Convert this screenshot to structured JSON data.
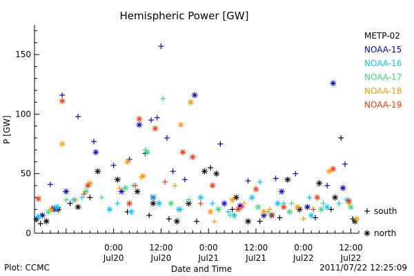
{
  "page": {
    "plot_credit": "Plot: CCMC",
    "timestamp": "2011/07/22 12:25:09"
  },
  "chart_data": {
    "type": "scatter",
    "title": "Hemispheric Power [GW]",
    "xlabel": "Date and Time",
    "ylabel": "P [GW]",
    "xlim": [
      "2011-07-19T04:00",
      "2011-07-22T14:00"
    ],
    "ylim": [
      0,
      175
    ],
    "yticks": [
      0,
      50,
      100,
      150
    ],
    "xticks": [
      {
        "time": "2011-07-20T00:00",
        "line1": "0:00",
        "line2": "Jul20"
      },
      {
        "time": "2011-07-20T12:00",
        "line1": "12:00",
        "line2": "Jul20"
      },
      {
        "time": "2011-07-21T00:00",
        "line1": "0:00",
        "line2": "Jul21"
      },
      {
        "time": "2011-07-21T12:00",
        "line1": "12:00",
        "line2": "Jul21"
      },
      {
        "time": "2011-07-22T00:00",
        "line1": "0:00",
        "line2": "Jul22"
      },
      {
        "time": "2011-07-22T12:00",
        "line1": "12:00",
        "line2": "Jul22"
      }
    ],
    "legend_position": "right",
    "marker_legend": [
      {
        "symbol": "+",
        "label": "south"
      },
      {
        "symbol": "*",
        "label": "north"
      }
    ],
    "series": [
      {
        "name": "METP-02",
        "color": "#000000",
        "south": [
          [
            "2011-07-19T05:30",
            8
          ],
          [
            "2011-07-19T08:30",
            21
          ],
          [
            "2011-07-19T13:00",
            25
          ],
          [
            "2011-07-19T18:00",
            30
          ],
          [
            "2011-07-20T03:30",
            18
          ],
          [
            "2011-07-20T09:00",
            15
          ],
          [
            "2011-07-20T14:00",
            12
          ],
          [
            "2011-07-20T21:00",
            10
          ],
          [
            "2011-07-21T00:30",
            55
          ],
          [
            "2011-07-21T06:00",
            20
          ],
          [
            "2011-07-21T13:00",
            10
          ],
          [
            "2011-07-21T18:00",
            13
          ],
          [
            "2011-07-22T03:00",
            13
          ],
          [
            "2011-07-22T07:00",
            20
          ],
          [
            "2011-07-22T09:30",
            80
          ],
          [
            "2011-07-22T12:30",
            12
          ]
        ],
        "north": [
          [
            "2011-07-19T04:30",
            12
          ],
          [
            "2011-07-19T07:00",
            10
          ],
          [
            "2011-07-19T10:00",
            20
          ],
          [
            "2011-07-19T15:00",
            22
          ],
          [
            "2011-07-19T20:00",
            52
          ],
          [
            "2011-07-20T01:00",
            45
          ],
          [
            "2011-07-20T06:00",
            35
          ],
          [
            "2011-07-20T10:00",
            25
          ],
          [
            "2011-07-20T16:00",
            10
          ],
          [
            "2011-07-20T19:00",
            25
          ],
          [
            "2011-07-20T23:00",
            52
          ],
          [
            "2011-07-21T02:00",
            50
          ],
          [
            "2011-07-21T07:00",
            30
          ],
          [
            "2011-07-21T10:00",
            10
          ],
          [
            "2011-07-21T16:00",
            15
          ],
          [
            "2011-07-21T20:00",
            45
          ],
          [
            "2011-07-21T23:00",
            20
          ],
          [
            "2011-07-22T04:00",
            42
          ],
          [
            "2011-07-22T08:00",
            30
          ],
          [
            "2011-07-22T13:00",
            10
          ]
        ]
      },
      {
        "name": "NOAA-15",
        "color": "#0000cc",
        "south": [
          [
            "2011-07-19T08:00",
            41
          ],
          [
            "2011-07-19T11:00",
            116
          ],
          [
            "2011-07-19T15:00",
            98
          ],
          [
            "2011-07-19T19:00",
            77
          ],
          [
            "2011-07-20T00:00",
            57
          ],
          [
            "2011-07-20T04:00",
            62
          ],
          [
            "2011-07-20T08:00",
            67
          ],
          [
            "2011-07-20T09:30",
            95
          ],
          [
            "2011-07-20T11:00",
            97
          ],
          [
            "2011-07-20T12:00",
            157
          ],
          [
            "2011-07-20T13:30",
            80
          ],
          [
            "2011-07-20T15:00",
            52
          ],
          [
            "2011-07-20T18:00",
            45
          ],
          [
            "2011-07-21T03:00",
            75
          ],
          [
            "2011-07-21T10:00",
            44
          ],
          [
            "2011-07-21T17:00",
            46
          ],
          [
            "2011-07-21T22:00",
            50
          ],
          [
            "2011-07-22T06:00",
            40
          ],
          [
            "2011-07-22T10:30",
            58
          ]
        ],
        "north": [
          [
            "2011-07-19T06:00",
            15
          ],
          [
            "2011-07-19T09:00",
            20
          ],
          [
            "2011-07-19T12:00",
            35
          ],
          [
            "2011-07-19T19:30",
            68
          ],
          [
            "2011-07-20T02:00",
            35
          ],
          [
            "2011-07-20T06:30",
            91
          ],
          [
            "2011-07-20T10:00",
            30
          ],
          [
            "2011-07-20T20:30",
            116
          ],
          [
            "2011-07-21T04:00",
            25
          ],
          [
            "2011-07-21T08:00",
            23
          ],
          [
            "2011-07-21T14:00",
            15
          ],
          [
            "2011-07-21T18:30",
            35
          ],
          [
            "2011-07-22T01:00",
            22
          ],
          [
            "2011-07-22T07:30",
            126
          ],
          [
            "2011-07-22T10:00",
            38
          ]
        ]
      },
      {
        "name": "NOAA-16",
        "color": "#00c8ff",
        "south": [
          [
            "2011-07-19T10:00",
            22
          ],
          [
            "2011-07-19T16:00",
            30
          ],
          [
            "2011-07-20T01:00",
            25
          ],
          [
            "2011-07-20T05:00",
            40
          ],
          [
            "2011-07-20T10:00",
            30
          ],
          [
            "2011-07-20T17:00",
            20
          ],
          [
            "2011-07-21T01:00",
            25
          ],
          [
            "2011-07-21T05:00",
            18
          ],
          [
            "2011-07-21T13:00",
            43
          ],
          [
            "2011-07-21T19:00",
            25
          ],
          [
            "2011-07-22T01:30",
            30
          ],
          [
            "2011-07-22T09:00",
            25
          ]
        ],
        "north": [
          [
            "2011-07-19T05:00",
            14
          ],
          [
            "2011-07-19T09:30",
            22
          ],
          [
            "2011-07-19T14:00",
            28
          ],
          [
            "2011-07-19T23:00",
            20
          ],
          [
            "2011-07-20T04:30",
            18
          ],
          [
            "2011-07-20T11:30",
            25
          ],
          [
            "2011-07-20T16:30",
            20
          ],
          [
            "2011-07-20T22:00",
            30
          ],
          [
            "2011-07-21T06:30",
            15
          ],
          [
            "2011-07-21T11:00",
            30
          ],
          [
            "2011-07-21T17:30",
            25
          ],
          [
            "2011-07-22T02:00",
            15
          ],
          [
            "2011-07-22T06:00",
            22
          ],
          [
            "2011-07-22T11:00",
            28
          ]
        ]
      },
      {
        "name": "NOAA-17",
        "color": "#33dd77",
        "south": [
          [
            "2011-07-19T12:00",
            28
          ],
          [
            "2011-07-19T21:00",
            30
          ],
          [
            "2011-07-20T08:00",
            70
          ],
          [
            "2011-07-20T12:30",
            113
          ],
          [
            "2011-07-20T19:00",
            28
          ],
          [
            "2011-07-21T05:30",
            15
          ],
          [
            "2011-07-21T15:00",
            18
          ],
          [
            "2011-07-21T21:00",
            25
          ],
          [
            "2011-07-22T05:00",
            25
          ]
        ],
        "north": [
          [
            "2011-07-19T07:30",
            18
          ],
          [
            "2011-07-19T17:00",
            35
          ],
          [
            "2011-07-20T03:00",
            38
          ],
          [
            "2011-07-20T08:30",
            68
          ],
          [
            "2011-07-20T14:30",
            25
          ],
          [
            "2011-07-21T02:30",
            20
          ],
          [
            "2011-07-21T12:30",
            22
          ],
          [
            "2011-07-21T20:30",
            18
          ],
          [
            "2011-07-22T04:30",
            20
          ],
          [
            "2011-07-22T12:00",
            22
          ]
        ]
      },
      {
        "name": "NOAA-18",
        "color": "#ff9900",
        "south": [
          [
            "2011-07-19T14:30",
            28
          ],
          [
            "2011-07-20T01:30",
            38
          ],
          [
            "2011-07-20T07:00",
            47
          ],
          [
            "2011-07-20T15:30",
            40
          ],
          [
            "2011-07-21T01:30",
            10
          ],
          [
            "2011-07-21T09:00",
            25
          ],
          [
            "2011-07-21T15:30",
            20
          ],
          [
            "2011-07-22T00:00",
            12
          ],
          [
            "2011-07-22T11:30",
            25
          ]
        ],
        "north": [
          [
            "2011-07-19T08:15",
            20
          ],
          [
            "2011-07-19T11:00",
            75
          ],
          [
            "2011-07-19T18:00",
            42
          ],
          [
            "2011-07-20T03:30",
            60
          ],
          [
            "2011-07-20T07:30",
            48
          ],
          [
            "2011-07-20T17:00",
            91
          ],
          [
            "2011-07-20T19:30",
            110
          ],
          [
            "2011-07-21T00:30",
            18
          ],
          [
            "2011-07-21T06:00",
            28
          ],
          [
            "2011-07-21T14:00",
            18
          ],
          [
            "2011-07-21T22:30",
            22
          ],
          [
            "2011-07-22T06:30",
            52
          ],
          [
            "2011-07-22T13:30",
            12
          ]
        ]
      },
      {
        "name": "NOAA-19",
        "color": "#ff3300",
        "south": [
          [
            "2011-07-19T16:30",
            33
          ],
          [
            "2011-07-20T05:30",
            40
          ],
          [
            "2011-07-20T13:00",
            43
          ],
          [
            "2011-07-20T22:00",
            25
          ],
          [
            "2011-07-21T08:30",
            22
          ],
          [
            "2011-07-21T16:00",
            15
          ],
          [
            "2011-07-22T02:30",
            20
          ]
        ],
        "north": [
          [
            "2011-07-19T05:00",
            29
          ],
          [
            "2011-07-19T11:00",
            111
          ],
          [
            "2011-07-19T17:30",
            40
          ],
          [
            "2011-07-20T04:00",
            25
          ],
          [
            "2011-07-20T06:30",
            96
          ],
          [
            "2011-07-20T10:30",
            88
          ],
          [
            "2011-07-20T17:30",
            68
          ],
          [
            "2011-07-20T20:00",
            64
          ],
          [
            "2011-07-21T01:00",
            40
          ],
          [
            "2011-07-21T07:30",
            20
          ],
          [
            "2011-07-21T12:00",
            37
          ],
          [
            "2011-07-21T19:00",
            22
          ],
          [
            "2011-07-22T03:30",
            30
          ],
          [
            "2011-07-22T07:30",
            54
          ],
          [
            "2011-07-22T11:30",
            27
          ]
        ]
      }
    ]
  }
}
